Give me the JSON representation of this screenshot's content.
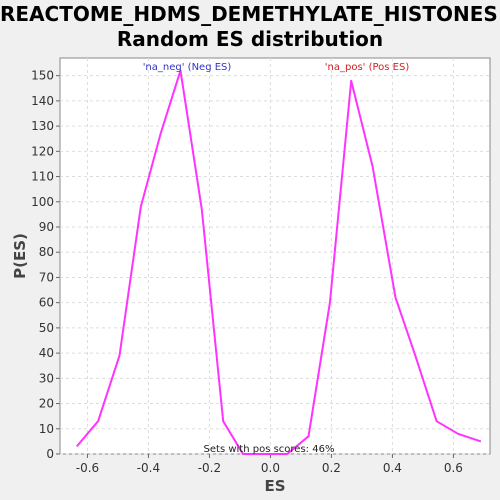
{
  "chart_data": {
    "type": "line",
    "title_line1": "REACTOME_HDMS_DEMETHYLATE_HISTONES:",
    "title_line2": "Random ES distribution",
    "xlabel": "ES",
    "ylabel": "P(ES)",
    "xlim": [
      -0.69,
      0.72
    ],
    "ylim": [
      0,
      157
    ],
    "x_ticks": [
      -0.6,
      -0.4,
      -0.2,
      0.0,
      0.2,
      0.4,
      0.6
    ],
    "x_tick_labels": [
      "-0.6",
      "-0.4",
      "-0.2",
      "0.0",
      "0.2",
      "0.4",
      "0.6"
    ],
    "y_ticks": [
      0,
      10,
      20,
      30,
      40,
      50,
      60,
      70,
      80,
      90,
      100,
      110,
      120,
      130,
      140,
      150
    ],
    "y_tick_labels": [
      "0",
      "10",
      "20",
      "30",
      "40",
      "50",
      "60",
      "70",
      "80",
      "90",
      "100",
      "110",
      "120",
      "130",
      "140",
      "150"
    ],
    "grid": true,
    "line_color": "#ff33ff",
    "series": [
      {
        "x": [
          -0.635,
          -0.565,
          -0.495,
          -0.425,
          -0.36,
          -0.295,
          -0.225,
          -0.155,
          -0.09,
          0.0,
          0.055,
          0.125,
          0.195,
          0.265,
          0.335,
          0.41,
          0.475,
          0.545,
          0.615,
          0.69
        ],
        "y": [
          3,
          13,
          39,
          98,
          127,
          152,
          97,
          13,
          0,
          0,
          0,
          7,
          60,
          148,
          114,
          62,
          39,
          13,
          8,
          5
        ]
      }
    ],
    "annotations": [
      {
        "text": "'na_neg' (Neg ES)",
        "color": "#3333cc"
      },
      {
        "text": "'na_pos' (Pos ES)",
        "color": "#cc2222"
      },
      {
        "text": "Sets with pos scores: 46%",
        "color": "#222222"
      }
    ]
  }
}
